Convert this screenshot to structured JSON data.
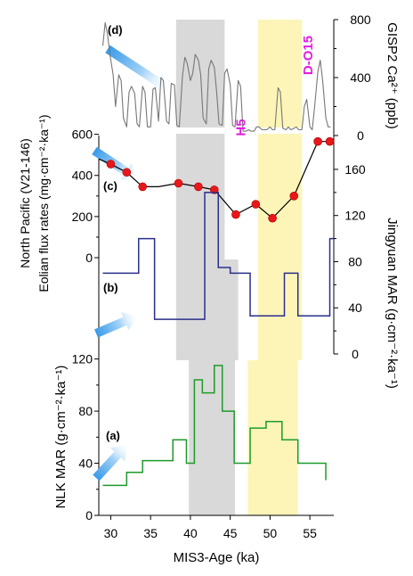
{
  "chart_data": {
    "type": "line",
    "shared_x": {
      "label": "MIS3-Age (ka)",
      "lim": [
        28.5,
        58
      ],
      "ticks": [
        30,
        35,
        40,
        45,
        50,
        55
      ],
      "tick_labels": [
        "30",
        "35",
        "40",
        "45",
        "50",
        "55"
      ]
    },
    "shaded_bands": [
      {
        "color": "#d9d9d9",
        "panel": "d",
        "x": [
          38.2,
          44.3
        ]
      },
      {
        "color": "#d9d9d9",
        "panel": "c",
        "x": [
          38.2,
          44.3
        ]
      },
      {
        "color": "#d9d9d9",
        "panel": "b",
        "x": [
          38.2,
          46.0
        ]
      },
      {
        "color": "#d9d9d9",
        "panel": "a",
        "x": [
          39.8,
          45.6
        ]
      },
      {
        "color": "#fdf5b8",
        "panel": "d",
        "x": [
          48.5,
          54.0
        ]
      },
      {
        "color": "#fdf5b8",
        "panel": "c",
        "x": [
          48.5,
          54.0
        ]
      },
      {
        "color": "#fdf5b8",
        "panel": "b",
        "x": [
          48.5,
          54.0
        ]
      },
      {
        "color": "#fdf5b8",
        "panel": "a",
        "x": [
          47.2,
          53.5
        ]
      }
    ],
    "panels": [
      {
        "id": "d",
        "label": "(d)",
        "series_color": "#777777",
        "y_axis_side": "right",
        "ylabel": "GISP2 Ca²⁺ (ppb)",
        "ylim": [
          0,
          800
        ],
        "y_ticks": [
          0,
          400,
          800
        ],
        "y_tick_labels": [
          "0",
          "400",
          "800"
        ],
        "x": [
          29.0,
          29.3,
          29.6,
          29.9,
          30.3,
          30.6,
          31.0,
          31.3,
          31.6,
          32.0,
          32.3,
          32.6,
          33.0,
          33.3,
          33.6,
          34.0,
          34.3,
          34.6,
          35.0,
          35.3,
          35.6,
          36.0,
          36.3,
          36.6,
          37.0,
          37.3,
          37.6,
          38.0,
          38.3,
          38.6,
          39.0,
          39.3,
          39.6,
          40.0,
          40.3,
          40.6,
          41.0,
          41.3,
          41.6,
          42.0,
          42.3,
          42.6,
          43.0,
          43.3,
          43.6,
          44.0,
          44.3,
          44.6,
          45.0,
          45.3,
          45.6,
          46.0,
          46.3,
          46.6,
          47.0,
          47.3,
          47.6,
          48.0,
          48.3,
          48.6,
          49.0,
          49.3,
          49.6,
          50.0,
          50.3,
          50.6,
          51.0,
          51.3,
          51.6,
          52.0,
          52.3,
          52.6,
          53.0,
          53.3,
          53.6,
          54.0,
          54.3,
          54.6,
          55.0,
          55.3,
          55.6,
          56.0,
          56.3,
          56.6,
          57.0,
          57.3,
          57.6
        ],
        "values": [
          620,
          780,
          700,
          560,
          420,
          200,
          420,
          380,
          120,
          60,
          300,
          340,
          290,
          80,
          60,
          340,
          300,
          60,
          60,
          320,
          330,
          100,
          400,
          380,
          100,
          80,
          360,
          350,
          70,
          60,
          410,
          540,
          500,
          380,
          430,
          560,
          520,
          420,
          120,
          80,
          460,
          520,
          470,
          300,
          80,
          70,
          430,
          460,
          350,
          70,
          60,
          380,
          340,
          30,
          30,
          40,
          30,
          30,
          60,
          60,
          40,
          40,
          40,
          60,
          40,
          40,
          330,
          300,
          50,
          40,
          60,
          40,
          50,
          60,
          40,
          40,
          200,
          250,
          60,
          40,
          200,
          440,
          520,
          380,
          120,
          60,
          60
        ],
        "annotations": [
          "H5",
          "D-O15"
        ],
        "annotation_color": "#e020e0",
        "arrow_color": "#5aaef0"
      },
      {
        "id": "c",
        "label": "(c)",
        "series_color": "#000000",
        "marker_color": "#e8181a",
        "y_axis_side": "left",
        "ylabel_line1": "North Pacific (V21-146)",
        "ylabel_line2": "Eolian flux rates (mg·cm⁻²·ka⁻¹)",
        "ylim": [
          0,
          620
        ],
        "y_ticks": [
          0,
          200,
          400,
          600
        ],
        "y_tick_labels": [
          "0",
          "200",
          "400",
          "600"
        ],
        "x": [
          28.5,
          30.0,
          32.0,
          34.0,
          36.0,
          38.5,
          41.0,
          43.0,
          45.7,
          48.2,
          50.3,
          53.0,
          56.0,
          57.5
        ],
        "values": [
          480,
          455,
          415,
          345,
          345,
          362,
          345,
          330,
          210,
          260,
          192,
          300,
          565,
          565
        ],
        "marked_points": [
          false,
          true,
          true,
          true,
          false,
          true,
          true,
          true,
          true,
          true,
          true,
          true,
          true,
          true
        ],
        "arrow_color": "#5aaef0"
      },
      {
        "id": "b",
        "label": "(b)",
        "series_color": "#2a2f8a",
        "y_axis_side": "right",
        "ylabel": "Jingyuan MAR (g·cm⁻²·ka⁻¹)",
        "ylim": [
          0,
          170
        ],
        "y_ticks": [
          0,
          40,
          80,
          120,
          160
        ],
        "y_tick_labels": [
          "0",
          "40",
          "80",
          "120",
          "160"
        ],
        "step_edges": [
          29.0,
          31.5,
          33.5,
          35.5,
          39.8,
          41.8,
          43.5,
          45.0,
          47.5,
          51.8,
          53.5,
          57.5,
          58.0
        ],
        "step_values": [
          70,
          70,
          100,
          30,
          30,
          140,
          75,
          70,
          33,
          70,
          33,
          100
        ],
        "arrow_color": "#5aaef0"
      },
      {
        "id": "a",
        "label": "(a)",
        "series_color": "#1e9a2a",
        "y_axis_side": "left",
        "ylabel": "NLK MAR (g·cm⁻²·ka⁻¹)",
        "ylim": [
          0,
          130
        ],
        "y_ticks": [
          0,
          40,
          80,
          120
        ],
        "y_tick_labels": [
          "0",
          "40",
          "80",
          "120"
        ],
        "step_edges": [
          29.0,
          32.0,
          34.0,
          37.8,
          39.5,
          40.5,
          41.5,
          43.0,
          44.0,
          45.5,
          47.5,
          49.5,
          51.5,
          53.5,
          57.0
        ],
        "step_values": [
          23,
          33,
          42,
          58,
          40,
          104,
          94,
          115,
          80,
          40,
          67,
          72,
          58,
          40
        ],
        "tail_value": 27,
        "arrow_color": "#5aaef0"
      }
    ]
  }
}
